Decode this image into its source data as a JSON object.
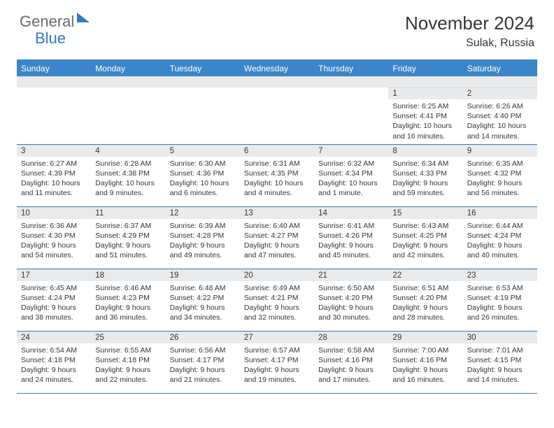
{
  "brand": {
    "part1": "General",
    "part2": "Blue"
  },
  "title": "November 2024",
  "location": "Sulak, Russia",
  "colors": {
    "header_bg": "#3b86c8",
    "header_text": "#ffffff",
    "daynum_bg": "#e9eaeb",
    "body_text": "#353535",
    "logo_gray": "#6b6b6b",
    "logo_blue": "#2f7cc4",
    "page_bg": "#ffffff"
  },
  "typography": {
    "title_fontsize": 26,
    "location_fontsize": 16,
    "dayheader_fontsize": 12,
    "daynum_fontsize": 11.5,
    "body_fontsize": 10.5,
    "font_family": "Arial"
  },
  "dayNames": [
    "Sunday",
    "Monday",
    "Tuesday",
    "Wednesday",
    "Thursday",
    "Friday",
    "Saturday"
  ],
  "weeks": [
    [
      null,
      null,
      null,
      null,
      null,
      {
        "n": "1",
        "sr": "6:25 AM",
        "ss": "4:41 PM",
        "dl": "10 hours and 16 minutes."
      },
      {
        "n": "2",
        "sr": "6:26 AM",
        "ss": "4:40 PM",
        "dl": "10 hours and 14 minutes."
      }
    ],
    [
      {
        "n": "3",
        "sr": "6:27 AM",
        "ss": "4:39 PM",
        "dl": "10 hours and 11 minutes."
      },
      {
        "n": "4",
        "sr": "6:28 AM",
        "ss": "4:38 PM",
        "dl": "10 hours and 9 minutes."
      },
      {
        "n": "5",
        "sr": "6:30 AM",
        "ss": "4:36 PM",
        "dl": "10 hours and 6 minutes."
      },
      {
        "n": "6",
        "sr": "6:31 AM",
        "ss": "4:35 PM",
        "dl": "10 hours and 4 minutes."
      },
      {
        "n": "7",
        "sr": "6:32 AM",
        "ss": "4:34 PM",
        "dl": "10 hours and 1 minute."
      },
      {
        "n": "8",
        "sr": "6:34 AM",
        "ss": "4:33 PM",
        "dl": "9 hours and 59 minutes."
      },
      {
        "n": "9",
        "sr": "6:35 AM",
        "ss": "4:32 PM",
        "dl": "9 hours and 56 minutes."
      }
    ],
    [
      {
        "n": "10",
        "sr": "6:36 AM",
        "ss": "4:30 PM",
        "dl": "9 hours and 54 minutes."
      },
      {
        "n": "11",
        "sr": "6:37 AM",
        "ss": "4:29 PM",
        "dl": "9 hours and 51 minutes."
      },
      {
        "n": "12",
        "sr": "6:39 AM",
        "ss": "4:28 PM",
        "dl": "9 hours and 49 minutes."
      },
      {
        "n": "13",
        "sr": "6:40 AM",
        "ss": "4:27 PM",
        "dl": "9 hours and 47 minutes."
      },
      {
        "n": "14",
        "sr": "6:41 AM",
        "ss": "4:26 PM",
        "dl": "9 hours and 45 minutes."
      },
      {
        "n": "15",
        "sr": "6:43 AM",
        "ss": "4:25 PM",
        "dl": "9 hours and 42 minutes."
      },
      {
        "n": "16",
        "sr": "6:44 AM",
        "ss": "4:24 PM",
        "dl": "9 hours and 40 minutes."
      }
    ],
    [
      {
        "n": "17",
        "sr": "6:45 AM",
        "ss": "4:24 PM",
        "dl": "9 hours and 38 minutes."
      },
      {
        "n": "18",
        "sr": "6:46 AM",
        "ss": "4:23 PM",
        "dl": "9 hours and 36 minutes."
      },
      {
        "n": "19",
        "sr": "6:48 AM",
        "ss": "4:22 PM",
        "dl": "9 hours and 34 minutes."
      },
      {
        "n": "20",
        "sr": "6:49 AM",
        "ss": "4:21 PM",
        "dl": "9 hours and 32 minutes."
      },
      {
        "n": "21",
        "sr": "6:50 AM",
        "ss": "4:20 PM",
        "dl": "9 hours and 30 minutes."
      },
      {
        "n": "22",
        "sr": "6:51 AM",
        "ss": "4:20 PM",
        "dl": "9 hours and 28 minutes."
      },
      {
        "n": "23",
        "sr": "6:53 AM",
        "ss": "4:19 PM",
        "dl": "9 hours and 26 minutes."
      }
    ],
    [
      {
        "n": "24",
        "sr": "6:54 AM",
        "ss": "4:18 PM",
        "dl": "9 hours and 24 minutes."
      },
      {
        "n": "25",
        "sr": "6:55 AM",
        "ss": "4:18 PM",
        "dl": "9 hours and 22 minutes."
      },
      {
        "n": "26",
        "sr": "6:56 AM",
        "ss": "4:17 PM",
        "dl": "9 hours and 21 minutes."
      },
      {
        "n": "27",
        "sr": "6:57 AM",
        "ss": "4:17 PM",
        "dl": "9 hours and 19 minutes."
      },
      {
        "n": "28",
        "sr": "6:58 AM",
        "ss": "4:16 PM",
        "dl": "9 hours and 17 minutes."
      },
      {
        "n": "29",
        "sr": "7:00 AM",
        "ss": "4:16 PM",
        "dl": "9 hours and 16 minutes."
      },
      {
        "n": "30",
        "sr": "7:01 AM",
        "ss": "4:15 PM",
        "dl": "9 hours and 14 minutes."
      }
    ]
  ],
  "labels": {
    "sunrise": "Sunrise: ",
    "sunset": "Sunset: ",
    "daylight": "Daylight: "
  }
}
